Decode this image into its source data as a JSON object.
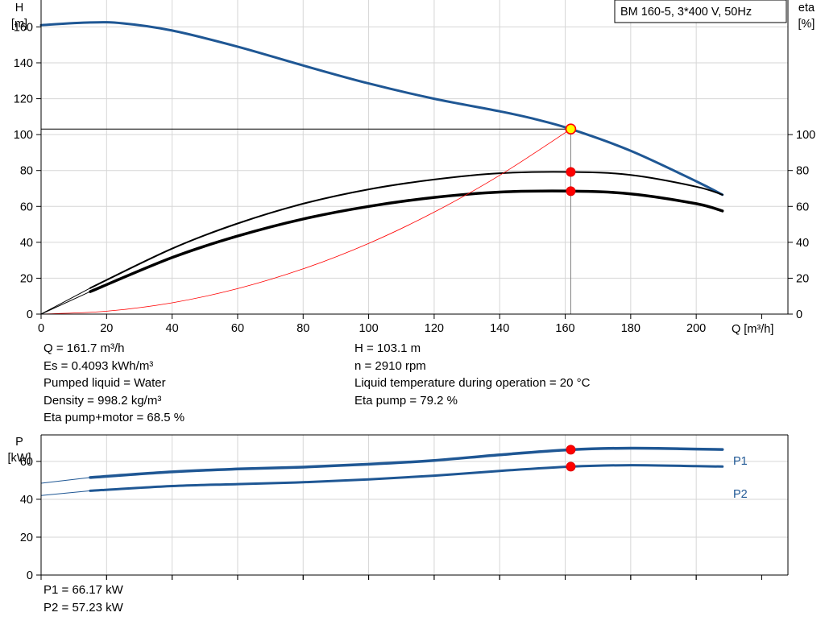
{
  "legend_box": "BM 160-5, 3*400 V, 50Hz",
  "results_left": [
    "Q = 161.7 m³/h",
    "Es = 0.4093 kWh/m³",
    "Pumped liquid = Water",
    "Density = 998.2 kg/m³",
    "Eta pump+motor = 68.5 %"
  ],
  "results_right": [
    "H = 103.1 m",
    "n = 2910 rpm",
    "Liquid temperature during operation = 20 °C",
    "Eta pump = 79.2 %"
  ],
  "power_results": [
    "P1 = 66.17 kW",
    "P2 = 57.23 kW"
  ],
  "colors": {
    "curve": "#1f5794",
    "marker": "#ff0000",
    "op_marker_fill": "#ffff00",
    "system": "#ff0000"
  },
  "chart_data": [
    {
      "type": "line",
      "title": "",
      "xlabel": "Q [m³/h]",
      "ylabel_left": [
        "H",
        "[m]"
      ],
      "ylabel_right": [
        "eta",
        "[%]"
      ],
      "xlim": [
        0,
        228
      ],
      "ylim": [
        0,
        175
      ],
      "x_ticks": [
        0,
        20,
        40,
        60,
        80,
        100,
        120,
        140,
        160,
        180,
        200
      ],
      "y_ticks_left": [
        0,
        20,
        40,
        60,
        80,
        100,
        120,
        140,
        160
      ],
      "y_ticks_right": [
        0,
        20,
        40,
        60,
        80,
        100
      ],
      "grid": true,
      "series": [
        {
          "key": "H",
          "axis": "left",
          "style": "curve",
          "x": [
            0,
            15,
            25,
            40,
            60,
            80,
            100,
            120,
            140,
            150,
            161.7,
            180,
            200,
            208
          ],
          "y": [
            161,
            162.5,
            162,
            158,
            149,
            138.5,
            128.5,
            120,
            113,
            109,
            103.1,
            91,
            74,
            66.5
          ]
        },
        {
          "key": "H_ext",
          "axis": "left",
          "style": "thin",
          "x": [
            0,
            15
          ],
          "y": [
            161,
            162.5
          ]
        },
        {
          "key": "Eta pump",
          "axis": "right",
          "style": "black",
          "x": [
            15,
            40,
            60,
            80,
            100,
            120,
            140,
            161.7,
            180,
            200,
            208
          ],
          "y": [
            14.5,
            36.5,
            50.5,
            61.5,
            69.5,
            75,
            78.5,
            79.2,
            77.5,
            71,
            66.5
          ]
        },
        {
          "key": "Eta pump+motor",
          "axis": "right",
          "style": "black-thick",
          "x": [
            15,
            40,
            60,
            80,
            100,
            120,
            140,
            161.7,
            180,
            200,
            208
          ],
          "y": [
            12.5,
            31.5,
            43.5,
            53,
            60,
            65,
            68,
            68.5,
            67,
            61.5,
            57.5
          ]
        },
        {
          "key": "eta_ext",
          "axis": "right",
          "style": "thin-black",
          "x": [
            0,
            15
          ],
          "y": [
            0,
            14.5
          ]
        },
        {
          "key": "eta_ext2",
          "axis": "right",
          "style": "thin-black",
          "x": [
            0,
            15
          ],
          "y": [
            0,
            12.5
          ]
        },
        {
          "key": "System curve",
          "axis": "left",
          "style": "system",
          "x": [
            0,
            20,
            40,
            60,
            80,
            100,
            120,
            140,
            161.7
          ],
          "y": [
            0,
            1.6,
            6.3,
            14.2,
            25.2,
            39.4,
            56.8,
            77.3,
            103.1
          ]
        }
      ],
      "operating_point": {
        "x": 161.7,
        "y": 103.1
      },
      "markers": [
        {
          "x": 161.7,
          "y": 79.2,
          "axis": "right"
        },
        {
          "x": 161.7,
          "y": 68.5,
          "axis": "right"
        }
      ]
    },
    {
      "type": "line",
      "title": "",
      "ylabel_left": [
        "P",
        "[kW]"
      ],
      "xlim": [
        0,
        228
      ],
      "ylim": [
        0,
        74
      ],
      "x_ticks": [
        0,
        20,
        40,
        60,
        80,
        100,
        120,
        140,
        160,
        180,
        200
      ],
      "y_ticks_left": [
        0,
        20,
        40,
        60
      ],
      "grid": true,
      "series": [
        {
          "key": "P1",
          "name": "P1",
          "style": "curve-thick",
          "x": [
            15,
            40,
            60,
            80,
            100,
            120,
            140,
            161.7,
            180,
            200,
            208
          ],
          "y": [
            51.5,
            54.5,
            56,
            57,
            58.5,
            60.5,
            63.5,
            66.17,
            67,
            66.5,
            66.3
          ]
        },
        {
          "key": "P1_ext",
          "style": "curve-thin",
          "x": [
            0,
            15
          ],
          "y": [
            48.5,
            51.5
          ]
        },
        {
          "key": "P2",
          "name": "P2",
          "style": "curve",
          "x": [
            15,
            40,
            60,
            80,
            100,
            120,
            140,
            161.7,
            180,
            200,
            208
          ],
          "y": [
            44.5,
            47,
            48,
            49,
            50.5,
            52.5,
            55,
            57.23,
            58,
            57.5,
            57.3
          ]
        },
        {
          "key": "P2_ext",
          "style": "curve-thin",
          "x": [
            0,
            15
          ],
          "y": [
            42,
            44.5
          ]
        }
      ],
      "markers": [
        {
          "x": 161.7,
          "y": 66.17
        },
        {
          "x": 161.7,
          "y": 57.23
        }
      ]
    }
  ]
}
